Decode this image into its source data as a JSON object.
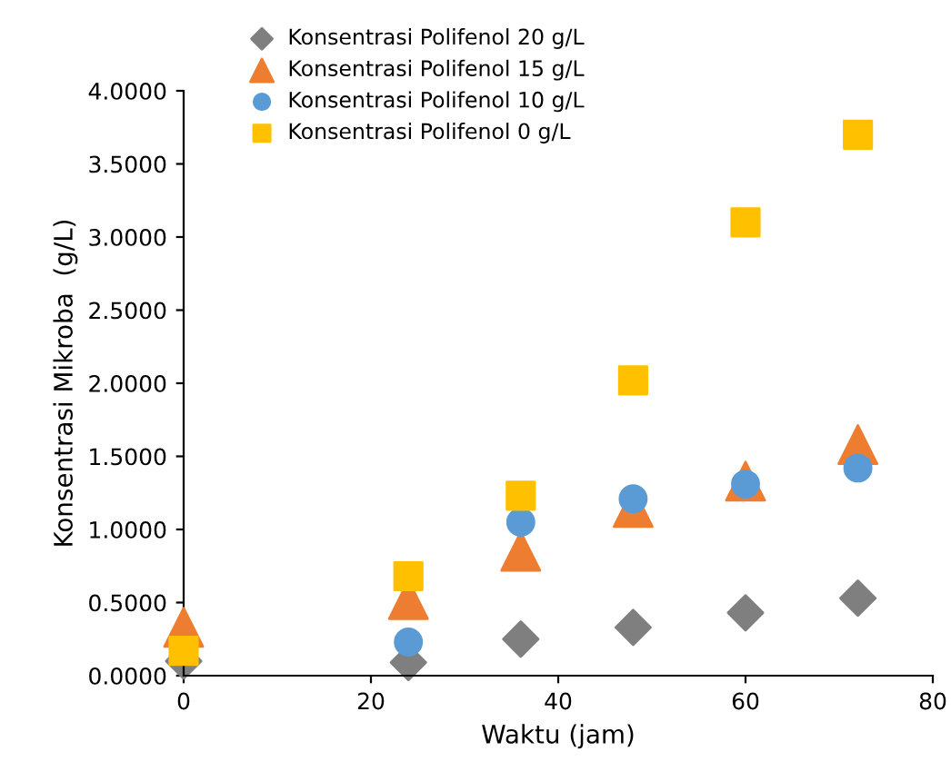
{
  "chart_data": {
    "type": "scatter",
    "xlabel": "Waktu (jam)",
    "ylabel": "Konsentrasi Mikroba  (g/L)",
    "xlim": [
      0,
      80
    ],
    "xticks": [
      0,
      20,
      40,
      60,
      80
    ],
    "ylim": [
      0,
      4
    ],
    "yticks": [
      {
        "value": 0,
        "label": "0.0000"
      },
      {
        "value": 0.5,
        "label": "0.5000"
      },
      {
        "value": 1,
        "label": "1.0000"
      },
      {
        "value": 1.5,
        "label": "1.5000"
      },
      {
        "value": 2,
        "label": "2.0000"
      },
      {
        "value": 2.5,
        "label": "2.5000"
      },
      {
        "value": 3,
        "label": "3.0000"
      },
      {
        "value": 3.5,
        "label": "3.5000"
      },
      {
        "value": 4,
        "label": "4.0000"
      }
    ],
    "grid": false,
    "legend": "top left",
    "x": [
      0,
      24,
      36,
      48,
      60,
      72
    ],
    "series": [
      {
        "name": "Konsentrasi Polifenol 20 g/L",
        "color": "#7f7f7f",
        "marker": "diamond",
        "values": [
          0.1,
          0.09,
          0.25,
          0.33,
          0.43,
          0.53
        ]
      },
      {
        "name": "Konsentrasi Polifenol 15 g/L",
        "color": "#ed7d31",
        "marker": "triangle",
        "values": [
          0.33,
          0.52,
          0.85,
          1.15,
          1.33,
          1.58
        ]
      },
      {
        "name": "Konsentrasi Polifenol 10 g/L",
        "color": "#5b9bd5",
        "marker": "circle",
        "values": [
          null,
          0.23,
          1.05,
          1.21,
          1.31,
          1.42
        ]
      },
      {
        "name": "Konsentrasi Polifenol 0 g/L",
        "color": "#ffc000",
        "marker": "square",
        "values": [
          0.17,
          0.68,
          1.23,
          2.02,
          3.1,
          3.7
        ]
      }
    ]
  }
}
